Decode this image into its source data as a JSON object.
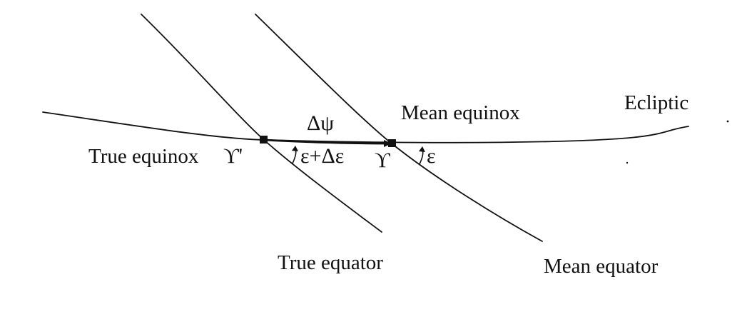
{
  "labels": {
    "ecliptic": "Ecliptic",
    "mean_equinox": "Mean equinox",
    "true_equinox": "True equinox",
    "true_equator": "True equator",
    "mean_equator": "Mean equator"
  },
  "symbols": {
    "delta_psi": "Δψ",
    "true_equinox_symbol": "ϒ'",
    "mean_equinox_symbol": "ϒ",
    "true_obliquity": "ε+Δε",
    "mean_obliquity": "ε"
  },
  "colors": {
    "ink": "#111111",
    "background": "#ffffff"
  }
}
